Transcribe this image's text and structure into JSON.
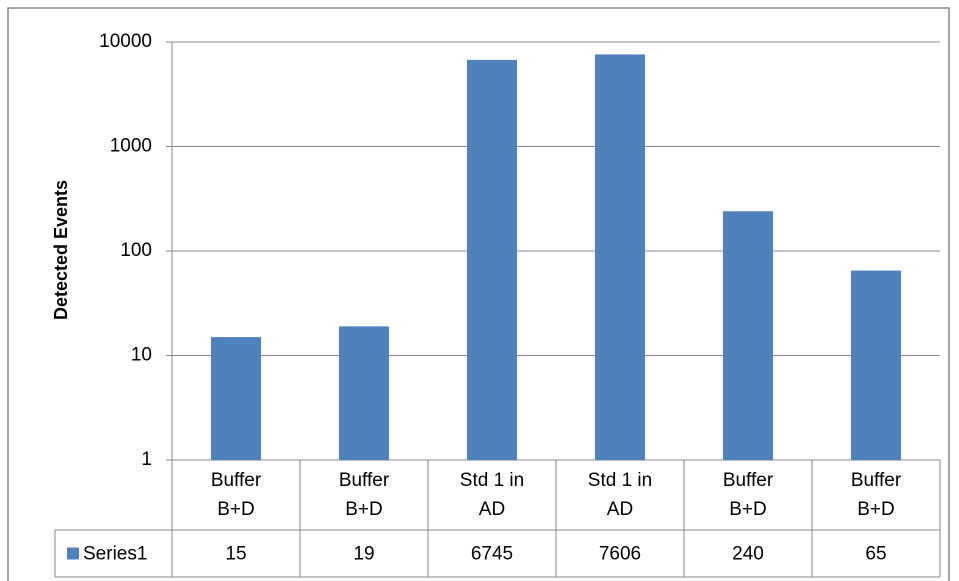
{
  "chart_data": {
    "type": "bar",
    "y_label": "Detected Events",
    "categories": [
      "Buffer B+D",
      "Buffer B+D",
      "Std 1 in AD",
      "Std 1 in AD",
      "Buffer B+D",
      "Buffer B+D"
    ],
    "series": [
      {
        "name": "Series1",
        "color": "#4f81bd",
        "values": [
          15,
          19,
          6745,
          7606,
          240,
          65
        ]
      }
    ],
    "ylim": [
      1,
      10000
    ],
    "yticks": [
      1,
      10,
      100,
      1000,
      10000
    ],
    "log_scale": true,
    "grid": true,
    "data_table": true
  }
}
